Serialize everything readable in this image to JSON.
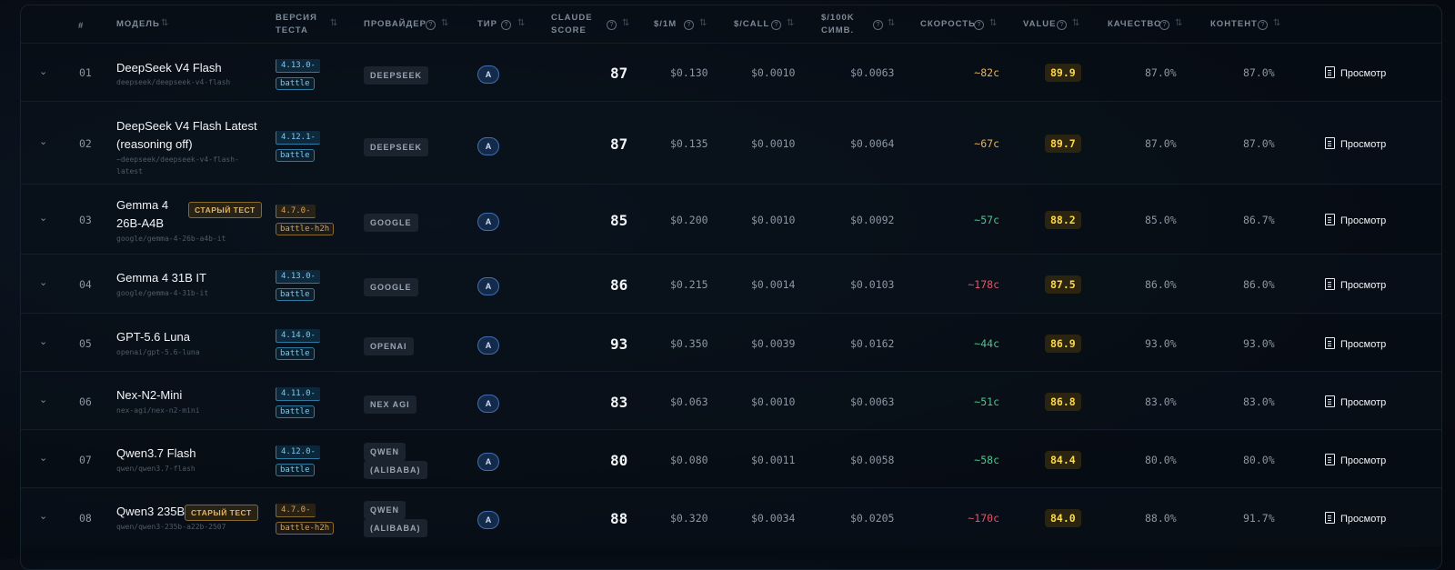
{
  "columns": {
    "idx": "#",
    "model": "МОДЕЛЬ",
    "version_l1": "ВЕРСИЯ",
    "version_l2": "ТЕСТА",
    "provider": "ПРОВАЙДЕР",
    "tier": "ТИР",
    "claude_l1": "CLAUDE",
    "claude_l2": "SCORE",
    "per1m": "$/1M",
    "percall": "$/CALL",
    "per100k_l1": "$/100K",
    "per100k_l2": "СИМВ.",
    "speed": "СКОРОСТЬ",
    "value": "VALUE",
    "quality": "КАЧЕСТВО",
    "content": "КОНТЕНТ"
  },
  "view_label": "Просмотр",
  "old_test_label": "СТАРЫЙ ТЕСТ",
  "colors": {
    "speed_good": "#4fc48f",
    "speed_mid": "#e6b35a",
    "speed_bad": "#e0566a",
    "value": "#ffd84a",
    "tier": "#3f6fb0"
  },
  "rows": [
    {
      "idx": "01",
      "name_l1": "DeepSeek V4 Flash",
      "name_l2": "",
      "path_l1": "deepseek/deepseek-v4-flash",
      "path_l2": "",
      "old": false,
      "ver": "4.13.0-",
      "vtag": "battle",
      "provider_l1": "DEEPSEEK",
      "provider_l2": "",
      "tier": "A",
      "score": "87",
      "per1m": "$0.130",
      "percall": "$0.0010",
      "per100k": "$0.0063",
      "speed": "~82с",
      "speed_color": "#e6b35a",
      "value": "89.9",
      "quality": "87.0%",
      "content": "87.0%"
    },
    {
      "idx": "02",
      "name_l1": "DeepSeek V4 Flash Latest",
      "name_l2": "(reasoning off)",
      "path_l1": "~deepseek/deepseek-v4-flash-",
      "path_l2": "latest",
      "old": false,
      "ver": "4.12.1-",
      "vtag": "battle",
      "provider_l1": "DEEPSEEK",
      "provider_l2": "",
      "tier": "A",
      "score": "87",
      "per1m": "$0.135",
      "percall": "$0.0010",
      "per100k": "$0.0064",
      "speed": "~67с",
      "speed_color": "#e6b35a",
      "value": "89.7",
      "quality": "87.0%",
      "content": "87.0%"
    },
    {
      "idx": "03",
      "name_l1": "Gemma 4",
      "name_l2": "26B-A4B",
      "path_l1": "google/gemma-4-26b-a4b-it",
      "path_l2": "",
      "old": true,
      "ver": "4.7.0-",
      "vtag": "battle-h2h",
      "provider_l1": "GOOGLE",
      "provider_l2": "",
      "tier": "A",
      "score": "85",
      "per1m": "$0.200",
      "percall": "$0.0010",
      "per100k": "$0.0092",
      "speed": "~57с",
      "speed_color": "#4fc48f",
      "value": "88.2",
      "quality": "85.0%",
      "content": "86.7%"
    },
    {
      "idx": "04",
      "name_l1": "Gemma 4 31B IT",
      "name_l2": "",
      "path_l1": "google/gemma-4-31b-it",
      "path_l2": "",
      "old": false,
      "ver": "4.13.0-",
      "vtag": "battle",
      "provider_l1": "GOOGLE",
      "provider_l2": "",
      "tier": "A",
      "score": "86",
      "per1m": "$0.215",
      "percall": "$0.0014",
      "per100k": "$0.0103",
      "speed": "~178с",
      "speed_color": "#e0566a",
      "value": "87.5",
      "quality": "86.0%",
      "content": "86.0%"
    },
    {
      "idx": "05",
      "name_l1": "GPT-5.6 Luna",
      "name_l2": "",
      "path_l1": "openai/gpt-5.6-luna",
      "path_l2": "",
      "old": false,
      "ver": "4.14.0-",
      "vtag": "battle",
      "provider_l1": "OPENAI",
      "provider_l2": "",
      "tier": "A",
      "score": "93",
      "per1m": "$0.350",
      "percall": "$0.0039",
      "per100k": "$0.0162",
      "speed": "~44с",
      "speed_color": "#4fc48f",
      "value": "86.9",
      "quality": "93.0%",
      "content": "93.0%"
    },
    {
      "idx": "06",
      "name_l1": "Nex-N2-Mini",
      "name_l2": "",
      "path_l1": "nex-agi/nex-n2-mini",
      "path_l2": "",
      "old": false,
      "ver": "4.11.0-",
      "vtag": "battle",
      "provider_l1": "NEX AGI",
      "provider_l2": "",
      "tier": "A",
      "score": "83",
      "per1m": "$0.063",
      "percall": "$0.0010",
      "per100k": "$0.0063",
      "speed": "~51с",
      "speed_color": "#4fc48f",
      "value": "86.8",
      "quality": "83.0%",
      "content": "83.0%"
    },
    {
      "idx": "07",
      "name_l1": "Qwen3.7 Flash",
      "name_l2": "",
      "path_l1": "qwen/qwen3.7-flash",
      "path_l2": "",
      "old": false,
      "ver": "4.12.0-",
      "vtag": "battle",
      "provider_l1": "QWEN",
      "provider_l2": "(ALIBABA)",
      "tier": "A",
      "score": "80",
      "per1m": "$0.080",
      "percall": "$0.0011",
      "per100k": "$0.0058",
      "speed": "~58с",
      "speed_color": "#4fc48f",
      "value": "84.4",
      "quality": "80.0%",
      "content": "80.0%"
    },
    {
      "idx": "08",
      "name_l1": "Qwen3 235B",
      "name_l2": "",
      "path_l1": "qwen/qwen3-235b-a22b-2507",
      "path_l2": "",
      "old": true,
      "ver": "4.7.0-",
      "vtag": "battle-h2h",
      "provider_l1": "QWEN",
      "provider_l2": "(ALIBABA)",
      "tier": "A",
      "score": "88",
      "per1m": "$0.320",
      "percall": "$0.0034",
      "per100k": "$0.0205",
      "speed": "~170с",
      "speed_color": "#e0566a",
      "value": "84.0",
      "quality": "88.0%",
      "content": "91.7%"
    }
  ]
}
